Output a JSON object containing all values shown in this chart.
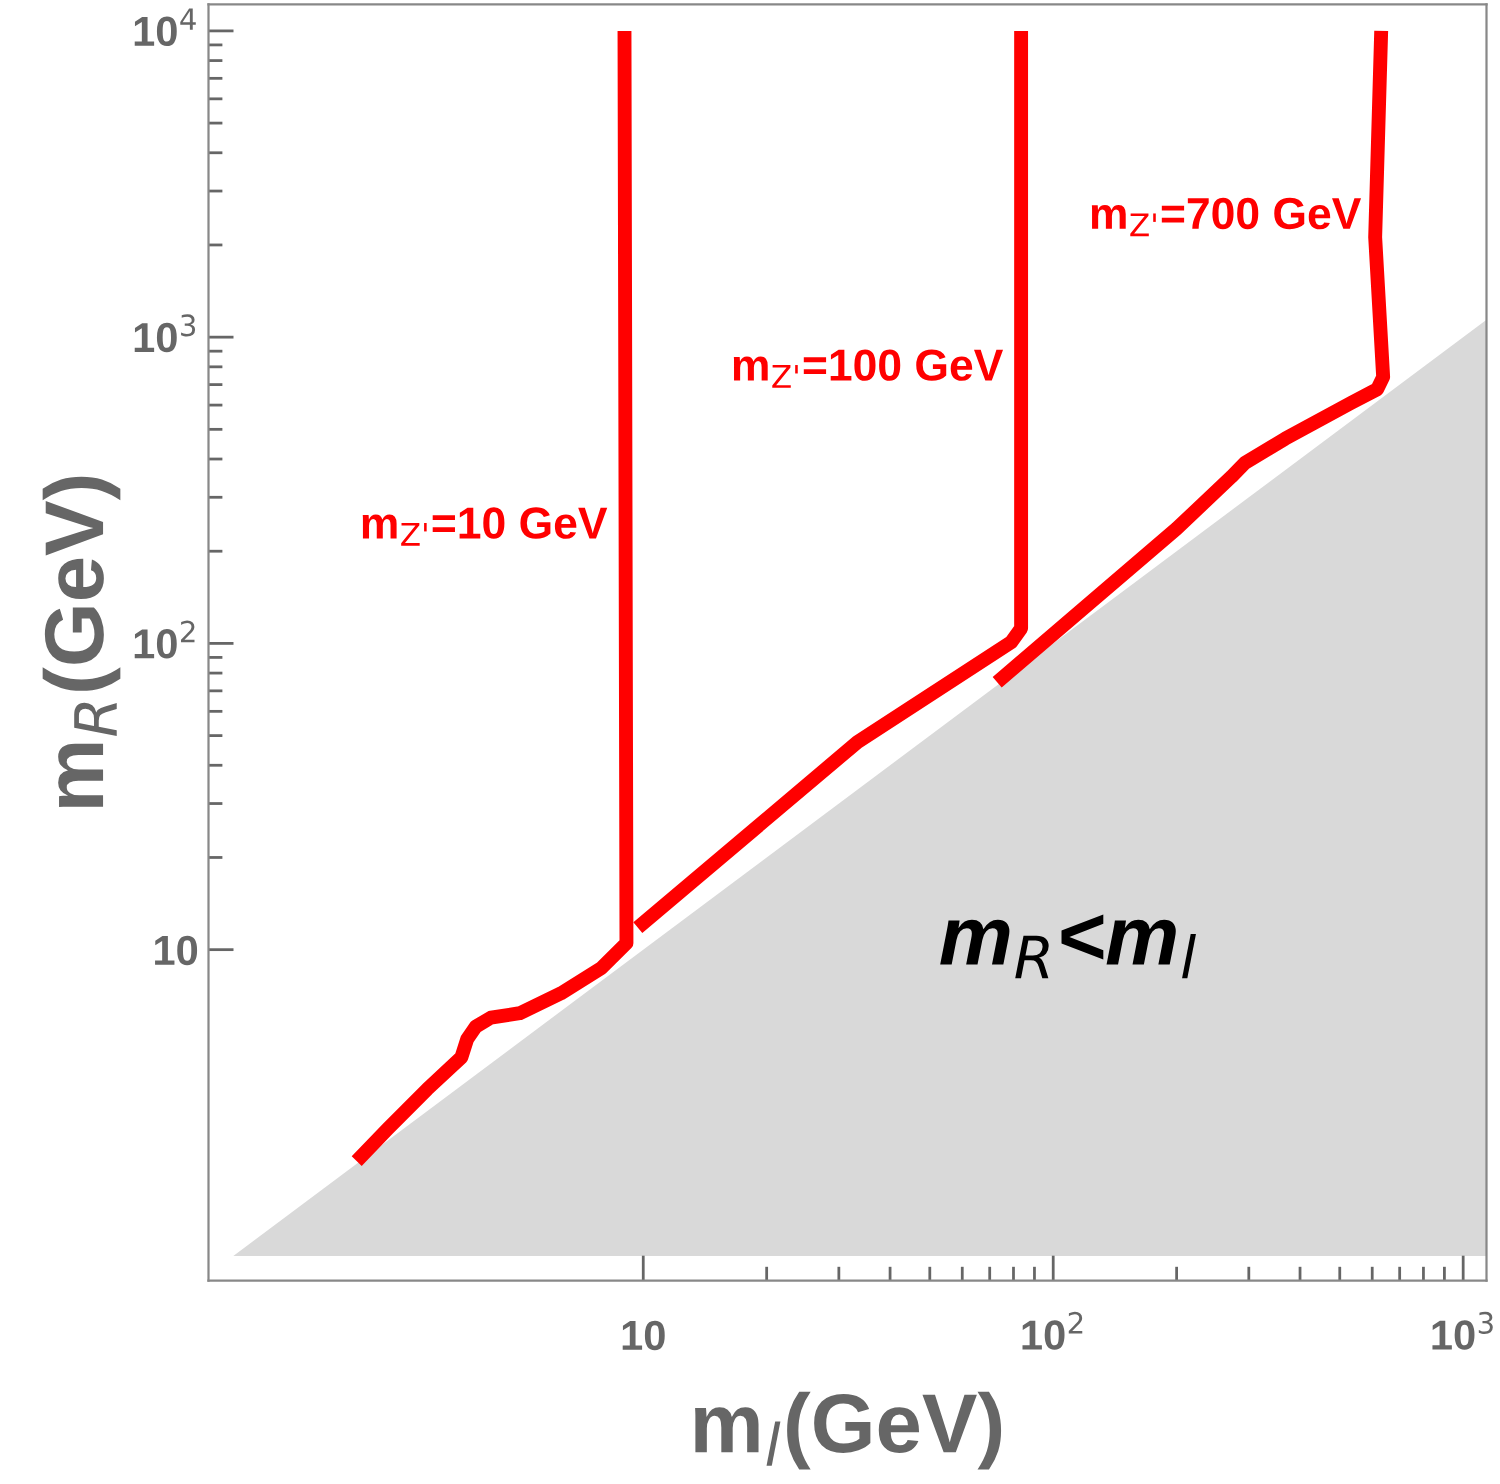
{
  "chart_data": {
    "type": "line",
    "xlabel": "m$_{l}$(GeV)",
    "ylabel": "m$_{R}$(GeV)",
    "log": "xy",
    "xlim": [
      0.87,
      1140
    ],
    "ylim": [
      0.83,
      12200
    ],
    "xticks": [
      {
        "value": 10,
        "label": "10"
      },
      {
        "value": 20,
        "label": null
      },
      {
        "value": 30,
        "label": null
      },
      {
        "value": 40,
        "label": null
      },
      {
        "value": 50,
        "label": null
      },
      {
        "value": 60,
        "label": null
      },
      {
        "value": 70,
        "label": null
      },
      {
        "value": 80,
        "label": null
      },
      {
        "value": 90,
        "label": null
      },
      {
        "value": 100,
        "label": "10$^{2}$"
      },
      {
        "value": 200,
        "label": null
      },
      {
        "value": 300,
        "label": null
      },
      {
        "value": 400,
        "label": null
      },
      {
        "value": 500,
        "label": null
      },
      {
        "value": 600,
        "label": null
      },
      {
        "value": 700,
        "label": null
      },
      {
        "value": 800,
        "label": null
      },
      {
        "value": 900,
        "label": null
      },
      {
        "value": 1000,
        "label": "10$^{3}$"
      }
    ],
    "yticks": [
      {
        "value": 10,
        "label": "10"
      },
      {
        "value": 20,
        "label": null
      },
      {
        "value": 30,
        "label": null
      },
      {
        "value": 40,
        "label": null
      },
      {
        "value": 50,
        "label": null
      },
      {
        "value": 60,
        "label": null
      },
      {
        "value": 70,
        "label": null
      },
      {
        "value": 80,
        "label": null
      },
      {
        "value": 90,
        "label": null
      },
      {
        "value": 100,
        "label": "10$^{2}$"
      },
      {
        "value": 200,
        "label": null
      },
      {
        "value": 300,
        "label": null
      },
      {
        "value": 400,
        "label": null
      },
      {
        "value": 500,
        "label": null
      },
      {
        "value": 600,
        "label": null
      },
      {
        "value": 700,
        "label": null
      },
      {
        "value": 800,
        "label": null
      },
      {
        "value": 900,
        "label": null
      },
      {
        "value": 1000,
        "label": "10$^{3}$"
      },
      {
        "value": 2000,
        "label": null
      },
      {
        "value": 3000,
        "label": null
      },
      {
        "value": 4000,
        "label": null
      },
      {
        "value": 5000,
        "label": null
      },
      {
        "value": 6000,
        "label": null
      },
      {
        "value": 7000,
        "label": null
      },
      {
        "value": 8000,
        "label": null
      },
      {
        "value": 9000,
        "label": null
      },
      {
        "value": 10000,
        "label": "10$^{4}$"
      }
    ],
    "series": [
      {
        "type": "area",
        "name": "m$_{R}$<m$_{l}$",
        "color": "#d9d9d9",
        "x": [
          1,
          1140
        ],
        "values": [
          1,
          1140
        ]
      },
      {
        "color": "#ff0000",
        "x": [
          9.0,
          9.1,
          7.9,
          6.3,
          5.0,
          4.25,
          3.9,
          3.72,
          3.6,
          2.97,
          2.38,
          2.0
        ],
        "values": [
          10000,
          10.5,
          8.7,
          7.2,
          6.2,
          6.0,
          5.6,
          5.1,
          4.45,
          3.5,
          2.6,
          2.04
        ]
      },
      {
        "color": "#ff0000",
        "x": [
          83.5,
          83.5,
          79,
          33.3,
          9.7
        ],
        "values": [
          10000,
          112,
          101,
          47.6,
          11.8
        ]
      },
      {
        "color": "#ff0000",
        "x": [
          631,
          610,
          638,
          617,
          533,
          368,
          294,
          272,
          200,
          73
        ],
        "values": [
          10000,
          2120,
          741,
          676,
          610,
          466,
          389,
          350,
          237,
          74.7
        ]
      }
    ],
    "annotations": [
      {
        "text": "m$_{Z'}$=10 GeV",
        "x": 9.0,
        "y": 240
      },
      {
        "text": "m$_{Z'}$=100 GeV",
        "x": 83,
        "y": 787
      },
      {
        "text": "m$_{Z'}$=700 GeV",
        "x": 620,
        "y": 2460
      }
    ]
  }
}
